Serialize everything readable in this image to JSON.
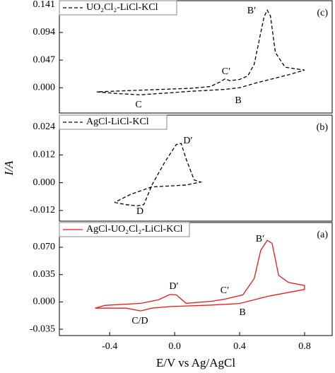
{
  "chart_data": [
    {
      "type": "line",
      "panel_label": "(c)",
      "legend": "upper left",
      "xlim": [
        -0.71,
        0.97
      ],
      "ylim": [
        -0.043,
        0.148
      ],
      "yticks": [
        {
          "value": 0,
          "label": "0.000"
        },
        0.047,
        0.094,
        0.141
      ],
      "annotations": [
        "B′",
        "C′",
        "B",
        "C"
      ],
      "series": [
        {
          "name": "UO₂Cl₂-LiCl-KCl",
          "color": "#000000",
          "dash": true,
          "x": [
            -0.48,
            -0.35,
            -0.21,
            -0.05,
            0.1,
            0.3,
            0.4,
            0.5,
            0.6,
            0.7,
            0.8,
            0.75,
            0.68,
            0.62,
            0.59,
            0.57,
            0.55,
            0.52,
            0.49,
            0.45,
            0.4,
            0.34,
            0.31,
            0.28,
            0.22,
            0.1,
            -0.1,
            -0.3,
            -0.48
          ],
          "values": [
            -0.007,
            -0.01,
            -0.012,
            -0.009,
            -0.006,
            -0.003,
            0.0,
            0.008,
            0.015,
            0.022,
            0.03,
            0.032,
            0.035,
            0.06,
            0.122,
            0.132,
            0.12,
            0.08,
            0.04,
            0.02,
            0.014,
            0.012,
            0.015,
            0.01,
            0.002,
            -0.001,
            -0.003,
            -0.005,
            -0.007
          ]
        }
      ]
    },
    {
      "type": "line",
      "panel_label": "(b)",
      "legend": "upper left",
      "ylabel": "I/A",
      "xlim": [
        -0.71,
        0.97
      ],
      "ylim": [
        -0.0166,
        0.0292
      ],
      "yticks": [
        -0.012,
        {
          "value": 0,
          "label": "0.000"
        },
        0.012,
        0.024
      ],
      "annotations": [
        "D′",
        "D"
      ],
      "series": [
        {
          "name": "AgCl-LiCl-KCl",
          "color": "#000000",
          "dash": true,
          "x": [
            -0.37,
            -0.3,
            -0.23,
            -0.19,
            -0.14,
            -0.06,
            0.01,
            0.04,
            0.07,
            0.12,
            0.16,
            0.07,
            -0.05,
            -0.14,
            -0.27,
            -0.37
          ],
          "values": [
            -0.0085,
            -0.0095,
            -0.01,
            -0.0095,
            -0.001,
            0.009,
            0.0165,
            0.017,
            0.0104,
            0.0012,
            0.0003,
            -0.001,
            -0.0015,
            -0.0018,
            -0.005,
            -0.0085
          ]
        }
      ]
    },
    {
      "type": "line",
      "panel_label": "(a)",
      "legend": "upper left",
      "xlabel": "E/V vs Ag/AgCl",
      "xlim": [
        -0.71,
        0.97
      ],
      "ylim": [
        -0.0431,
        0.1017
      ],
      "xticks": [
        -0.4,
        {
          "value": 0,
          "label": "0.0"
        },
        0.4,
        0.8
      ],
      "yticks": [
        -0.035,
        {
          "value": 0,
          "label": "0.000"
        },
        0.035,
        {
          "value": 0.07,
          "label": "0.070"
        }
      ],
      "annotations": [
        "B′",
        "C′",
        "D′",
        "B",
        "C/D"
      ],
      "series": [
        {
          "name": "AgCl-UO₂Cl₂-LiCl-KCl",
          "color": "#e8191c",
          "dash": false,
          "x": [
            -0.49,
            -0.3,
            -0.21,
            -0.14,
            -0.03,
            0.23,
            0.4,
            0.57,
            0.8,
            0.8,
            0.7,
            0.64,
            0.6,
            0.57,
            0.53,
            0.49,
            0.42,
            0.31,
            0.23,
            0.07,
            0.01,
            -0.03,
            -0.1,
            -0.21,
            -0.43,
            -0.49
          ],
          "values": [
            -0.008,
            -0.008,
            -0.0115,
            -0.008,
            -0.006,
            -0.004,
            -0.002,
            0.007,
            0.016,
            0.021,
            0.025,
            0.034,
            0.075,
            0.079,
            0.066,
            0.03,
            0.009,
            0.0036,
            0.0009,
            -0.0018,
            0.009,
            0.0095,
            0.0027,
            -0.0018,
            -0.0045,
            -0.008
          ]
        }
      ]
    }
  ]
}
